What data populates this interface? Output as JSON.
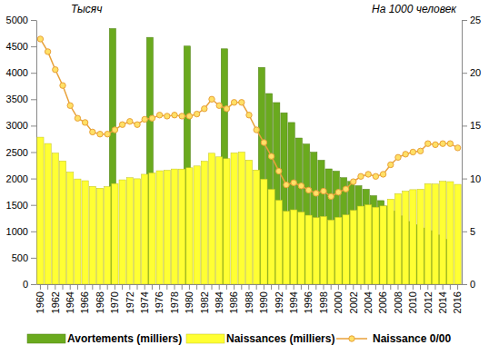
{
  "chart_data": {
    "type": "bar",
    "y_label": "Тысяч",
    "y2_label": "На 1000 человек",
    "categories": [
      "1960",
      null,
      "1962",
      null,
      "1964",
      null,
      "1966",
      null,
      "1968",
      null,
      "1970",
      null,
      "1972",
      null,
      "1974",
      null,
      "1976",
      null,
      "1978",
      null,
      "1980",
      null,
      "1982",
      null,
      "1984",
      null,
      "1986",
      null,
      "1988",
      null,
      "1990",
      null,
      "1992",
      null,
      "1994",
      null,
      "1996",
      null,
      "1998",
      null,
      "2000",
      null,
      "2002",
      null,
      "2004",
      null,
      "2006",
      null,
      "2008",
      null,
      "2010",
      null,
      "2012",
      null,
      "2014",
      null,
      "2016"
    ],
    "series": [
      {
        "name": "Avortements (milliers)",
        "type": "bar",
        "color": "#6aaa1e",
        "values": [
          null,
          null,
          null,
          null,
          null,
          null,
          null,
          null,
          null,
          null,
          4838,
          null,
          null,
          null,
          null,
          4671,
          null,
          null,
          null,
          null,
          4506,
          null,
          null,
          null,
          null,
          4454,
          null,
          null,
          null,
          null,
          4103,
          3608,
          3437,
          3244,
          3060,
          2766,
          2652,
          2498,
          2346,
          2182,
          2139,
          2015,
          1945,
          1864,
          1797,
          1675,
          1582,
          1479,
          1385,
          1292,
          1186,
          1124,
          1063,
          1012,
          930,
          848,
          null
        ]
      },
      {
        "name": "Naissances (milliers)",
        "type": "bar",
        "color": "#ffff33",
        "values": [
          2782,
          2662,
          2482,
          2332,
          2121,
          1991,
          1958,
          1851,
          1817,
          1847,
          1904,
          1975,
          2015,
          1995,
          2080,
          2106,
          2147,
          2157,
          2180,
          2179,
          2203,
          2237,
          2328,
          2478,
          2409,
          2375,
          2486,
          2500,
          2348,
          2161,
          1989,
          1795,
          1588,
          1379,
          1408,
          1364,
          1305,
          1260,
          1283,
          1215,
          1267,
          1312,
          1397,
          1477,
          1502,
          1457,
          1480,
          1610,
          1714,
          1762,
          1789,
          1797,
          1902,
          1896,
          1948,
          1941,
          1889
        ]
      },
      {
        "name": "Naissance 0/00",
        "type": "line",
        "axis": "y2",
        "color": "#e8a13a",
        "marker": "circle",
        "values": [
          23.2,
          22.0,
          20.3,
          18.8,
          16.9,
          15.7,
          15.3,
          14.4,
          14.2,
          14.2,
          14.6,
          15.1,
          15.4,
          15.1,
          15.6,
          15.7,
          16.0,
          15.9,
          16.0,
          15.9,
          15.9,
          16.1,
          16.6,
          17.5,
          16.9,
          16.6,
          17.2,
          17.2,
          16.0,
          14.6,
          13.4,
          12.1,
          10.7,
          9.4,
          9.6,
          9.3,
          8.9,
          8.6,
          8.8,
          8.3,
          8.7,
          9.0,
          9.7,
          10.2,
          10.4,
          10.2,
          10.4,
          11.3,
          12.0,
          12.3,
          12.5,
          12.6,
          13.3,
          13.2,
          13.3,
          13.3,
          12.9
        ]
      }
    ],
    "ylim": [
      0,
      5000
    ],
    "yticks": [
      0,
      500,
      1000,
      1500,
      2000,
      2500,
      3000,
      3500,
      4000,
      4500,
      5000
    ],
    "y2lim": [
      0,
      25
    ],
    "y2ticks": [
      0,
      5,
      10,
      15,
      20,
      25
    ],
    "grid": false,
    "legend": "bottom"
  }
}
